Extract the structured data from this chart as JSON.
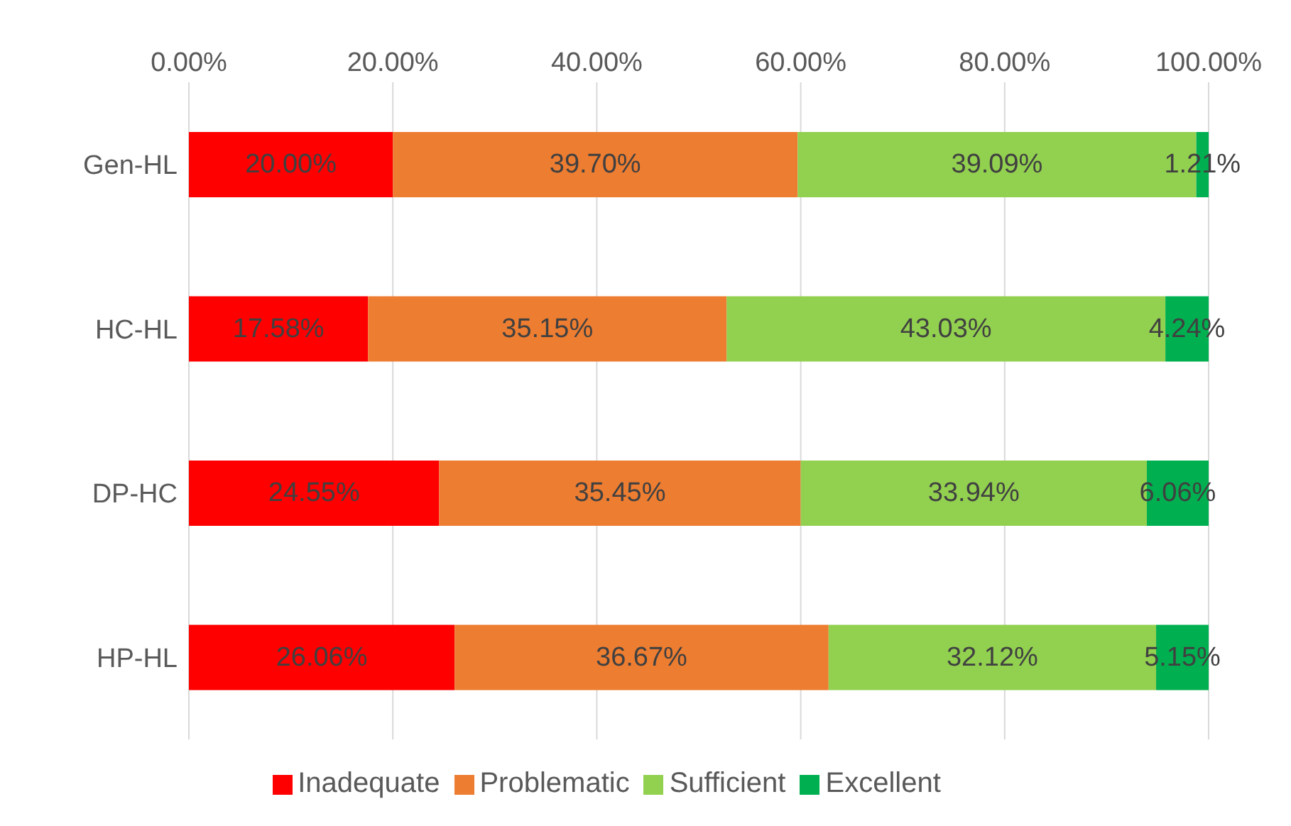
{
  "chart_data": {
    "type": "bar",
    "orientation": "horizontal",
    "stacked": true,
    "categories": [
      "Gen-HL",
      "HC-HL",
      "DP-HC",
      "HP-HL"
    ],
    "series": [
      {
        "name": "Inadequate",
        "color": "#ff0000",
        "values": [
          20.0,
          17.58,
          24.55,
          26.06
        ],
        "value_labels": [
          "20.00%",
          "17.58%",
          "24.55%",
          "26.06%"
        ]
      },
      {
        "name": "Problematic",
        "color": "#ed7d31",
        "values": [
          39.7,
          35.15,
          35.45,
          36.67
        ],
        "value_labels": [
          "39.70%",
          "35.15%",
          "35.45%",
          "36.67%"
        ]
      },
      {
        "name": "Sufficient",
        "color": "#92d050",
        "values": [
          39.09,
          43.03,
          33.94,
          32.12
        ],
        "value_labels": [
          "39.09%",
          "43.03%",
          "33.94%",
          "32.12%"
        ]
      },
      {
        "name": "Excellent",
        "color": "#00b050",
        "values": [
          1.21,
          4.24,
          6.06,
          5.15
        ],
        "value_labels": [
          "1.21%",
          "4.24%",
          "6.06%",
          "5.15%"
        ]
      }
    ],
    "xlim": [
      0,
      100
    ],
    "xticks": [
      {
        "value": 0,
        "label": "0.00%"
      },
      {
        "value": 20,
        "label": "20.00%"
      },
      {
        "value": 40,
        "label": "40.00%"
      },
      {
        "value": 60,
        "label": "60.00%"
      },
      {
        "value": 80,
        "label": "80.00%"
      },
      {
        "value": 100,
        "label": "100.00%"
      }
    ],
    "grid": "x",
    "legend": "bottom"
  }
}
